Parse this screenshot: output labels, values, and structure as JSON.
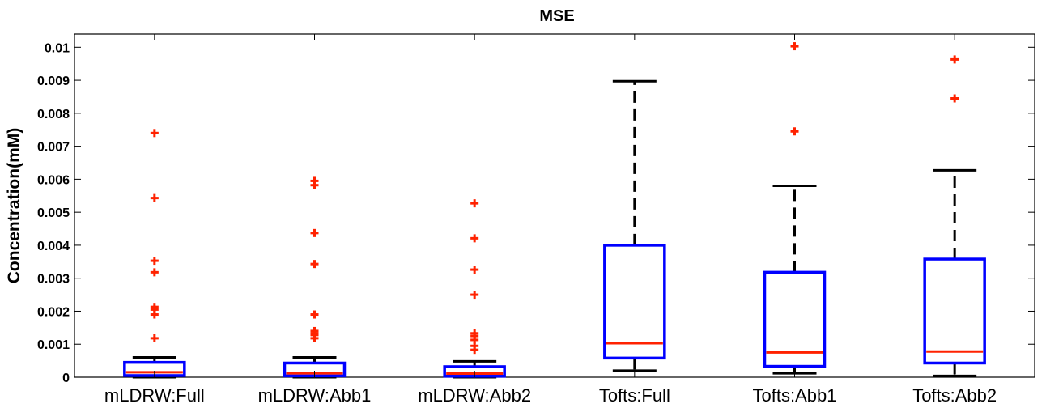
{
  "chart_data": {
    "type": "box",
    "title": "MSE",
    "xlabel": "",
    "ylabel": "Concentration(mM)",
    "ylim": [
      0,
      0.0104
    ],
    "yticks": [
      0,
      0.001,
      0.002,
      0.003,
      0.004,
      0.005,
      0.006,
      0.007,
      0.008,
      0.009,
      0.01
    ],
    "ytick_labels": [
      "0",
      "0.001",
      "0.002",
      "0.003",
      "0.004",
      "0.005",
      "0.006",
      "0.007",
      "0.008",
      "0.009",
      "0.01"
    ],
    "grid": false,
    "categories": [
      "mLDRW:Full",
      "mLDRW:Abb1",
      "mLDRW:Abb2",
      "Tofts:Full",
      "Tofts:Abb1",
      "Tofts:Abb2"
    ],
    "boxes": [
      {
        "label": "mLDRW:Full",
        "whisker_low": 0.0,
        "q1": 5e-05,
        "median": 0.00015,
        "q3": 0.00045,
        "whisker_high": 0.0006,
        "outliers": [
          0.0074,
          0.00543,
          0.00353,
          0.00318,
          0.00213,
          0.00205,
          0.0019,
          0.00118
        ]
      },
      {
        "label": "mLDRW:Abb1",
        "whisker_low": 0.0,
        "q1": 4e-05,
        "median": 0.00012,
        "q3": 0.00043,
        "whisker_high": 0.0006,
        "outliers": [
          0.00595,
          0.00582,
          0.00437,
          0.00343,
          0.0019,
          0.0014,
          0.00133,
          0.00128,
          0.00118
        ]
      },
      {
        "label": "mLDRW:Abb2",
        "whisker_low": 0.0,
        "q1": 3e-05,
        "median": 0.00011,
        "q3": 0.00032,
        "whisker_high": 0.00048,
        "outliers": [
          0.00527,
          0.00421,
          0.00326,
          0.0025,
          0.00133,
          0.00125,
          0.00113,
          0.00095,
          0.00083
        ]
      },
      {
        "label": "Tofts:Full",
        "whisker_low": 0.0002,
        "q1": 0.00058,
        "median": 0.00103,
        "q3": 0.004,
        "whisker_high": 0.00897,
        "outliers": []
      },
      {
        "label": "Tofts:Abb1",
        "whisker_low": 0.00012,
        "q1": 0.00033,
        "median": 0.00075,
        "q3": 0.00318,
        "whisker_high": 0.0058,
        "outliers": [
          0.01003,
          0.00745
        ]
      },
      {
        "label": "Tofts:Abb2",
        "whisker_low": 4e-05,
        "q1": 0.00043,
        "median": 0.00078,
        "q3": 0.00358,
        "whisker_high": 0.00627,
        "outliers": [
          0.00963,
          0.00845
        ]
      }
    ],
    "colors": {
      "box": "#0000ff",
      "median": "#ff2200",
      "whisker": "#000000",
      "outlier": "#ff2200",
      "axes": "#000000"
    }
  }
}
